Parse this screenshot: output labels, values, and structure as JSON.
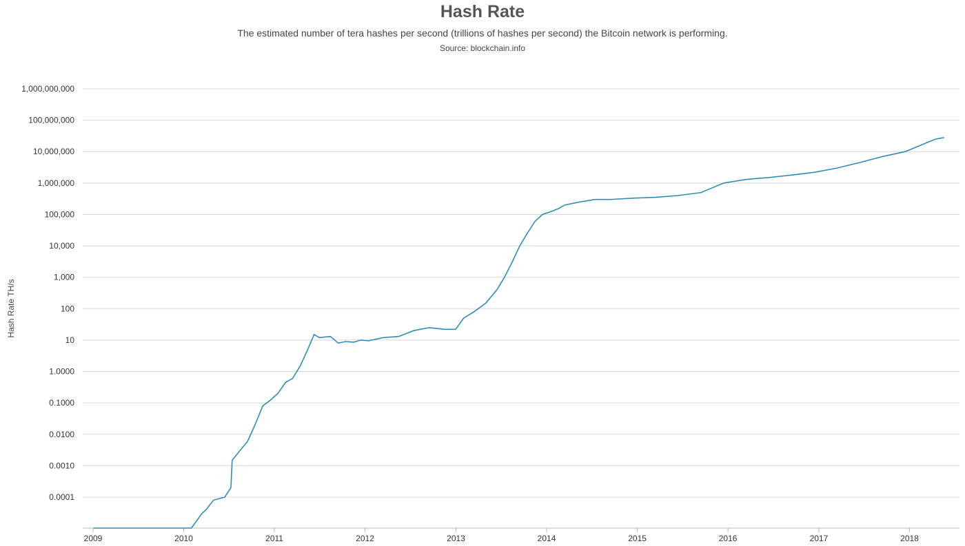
{
  "chart_data": {
    "type": "line",
    "title": "Hash Rate",
    "subtitle": "The estimated number of tera hashes per second (trillions of hashes per second) the Bitcoin network is performing.",
    "source": "Source: blockchain.info",
    "ylabel": "Hash Rate TH/s",
    "xlabel": "",
    "y_scale": "log",
    "grid": true,
    "legend": "none",
    "line_color": "#2e8cb8",
    "grid_color": "#d8d8d8",
    "y_tick_values": [
      0.0001,
      0.001,
      0.01,
      0.1,
      1,
      10,
      100,
      1000,
      10000,
      100000,
      1000000,
      10000000,
      100000000,
      1000000000
    ],
    "y_tick_labels": [
      "0.0001",
      "0.0010",
      "0.0100",
      "0.1000",
      "1.0000",
      "10",
      "100",
      "1,000",
      "10,000",
      "100,000",
      "1,000,000",
      "10,000,000",
      "100,000,000",
      "1,000,000,000"
    ],
    "x_tick_labels": [
      "2009",
      "2010",
      "2011",
      "2012",
      "2013",
      "2014",
      "2015",
      "2016",
      "2017",
      "2018"
    ],
    "x_range": [
      "2009-01-01",
      "2018-06-15"
    ],
    "series": [
      {
        "x": [
          "2009-01-03",
          "2009-06-01",
          "2009-12-31",
          "2010-01-15",
          "2010-02-01",
          "2010-03-15",
          "2010-04-01",
          "2010-05-01",
          "2010-06-15",
          "2010-07-10",
          "2010-07-15",
          "2010-08-15",
          "2010-09-15",
          "2010-10-15",
          "2010-11-15",
          "2010-12-15",
          "2011-01-15",
          "2011-02-15",
          "2011-03-15",
          "2011-04-15",
          "2011-05-15",
          "2011-06-10",
          "2011-07-01",
          "2011-08-15",
          "2011-09-15",
          "2011-10-15",
          "2011-11-15",
          "2011-12-15",
          "2012-01-15",
          "2012-03-15",
          "2012-05-15",
          "2012-07-15",
          "2012-09-15",
          "2012-11-15",
          "2012-12-31",
          "2013-02-01",
          "2013-03-15",
          "2013-05-01",
          "2013-06-15",
          "2013-07-15",
          "2013-08-15",
          "2013-09-15",
          "2013-10-15",
          "2013-11-15",
          "2013-12-15",
          "2014-01-15",
          "2014-02-15",
          "2014-03-15",
          "2014-05-15",
          "2014-07-15",
          "2014-09-15",
          "2014-12-15",
          "2015-03-15",
          "2015-06-15",
          "2015-09-15",
          "2015-12-15",
          "2016-03-15",
          "2016-06-15",
          "2016-09-15",
          "2016-12-15",
          "2017-03-15",
          "2017-06-15",
          "2017-09-15",
          "2017-12-15",
          "2018-02-15",
          "2018-04-15",
          "2018-05-20"
        ],
        "y": [
          5e-06,
          5e-06,
          5e-06,
          6e-06,
          1e-05,
          3e-05,
          4e-05,
          8e-05,
          0.0001,
          0.0002,
          0.0015,
          0.003,
          0.006,
          0.02,
          0.08,
          0.12,
          0.2,
          0.45,
          0.6,
          1.5,
          5,
          15,
          12,
          13,
          8,
          9,
          8.5,
          10,
          9.5,
          12,
          13,
          20,
          25,
          22,
          22,
          50,
          80,
          150,
          400,
          1000,
          3000,
          10000,
          25000,
          60000,
          100000,
          120000,
          150000,
          200000,
          250000,
          300000,
          300000,
          330000,
          350000,
          400000,
          500000,
          1000000,
          1300000,
          1500000,
          1800000,
          2200000,
          3000000,
          4500000,
          7000000,
          10000000,
          16000000,
          25000000,
          28000000
        ]
      }
    ]
  }
}
